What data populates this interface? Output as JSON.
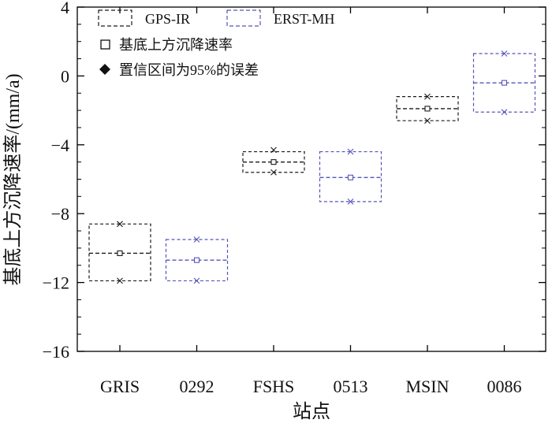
{
  "chart_data": {
    "type": "box",
    "ylabel": "基底上方沉降速率/(mm/a)",
    "xlabel": "站点",
    "ylim": [
      -16,
      4
    ],
    "yticks": [
      4,
      0,
      -4,
      -8,
      -12,
      -16
    ],
    "ytick_labels": [
      "4",
      "0",
      "−4",
      "−8",
      "−12",
      "−16"
    ],
    "categories": [
      "GRIS",
      "0292",
      "FSHS",
      "0513",
      "MSIN",
      "0086"
    ],
    "legend": {
      "placement": "top-left",
      "series_labels": [
        "GPS-IR",
        "ERST-MH"
      ],
      "rate_label": "基底上方沉降速率",
      "ci_label": "置信区间为95%的误差"
    },
    "series": [
      {
        "name": "GPS-IR",
        "color": "#1a1a1a",
        "points": [
          {
            "category": "GRIS",
            "box_top": -8.6,
            "box_bottom": -11.9,
            "mean": -10.3,
            "median": -10.3,
            "upper": -8.6,
            "lower": -11.9
          },
          {
            "category": "FSHS",
            "box_top": -4.4,
            "box_bottom": -5.6,
            "mean": -5.0,
            "median": -5.0,
            "upper": -4.3,
            "lower": -5.6
          },
          {
            "category": "MSIN",
            "box_top": -1.2,
            "box_bottom": -2.6,
            "mean": -1.9,
            "median": -1.9,
            "upper": -1.2,
            "lower": -2.6
          }
        ]
      },
      {
        "name": "ERST-MH",
        "color": "#5555bb",
        "points": [
          {
            "category": "0292",
            "box_top": -9.5,
            "box_bottom": -11.9,
            "mean": -10.7,
            "median": -10.7,
            "upper": -9.5,
            "lower": -11.9
          },
          {
            "category": "0513",
            "box_top": -4.4,
            "box_bottom": -7.3,
            "mean": -5.9,
            "median": -5.9,
            "upper": -4.4,
            "lower": -7.3
          },
          {
            "category": "0086",
            "box_top": 1.3,
            "box_bottom": -2.1,
            "mean": -0.4,
            "median": -0.4,
            "upper": 1.3,
            "lower": -2.1
          }
        ]
      }
    ]
  }
}
